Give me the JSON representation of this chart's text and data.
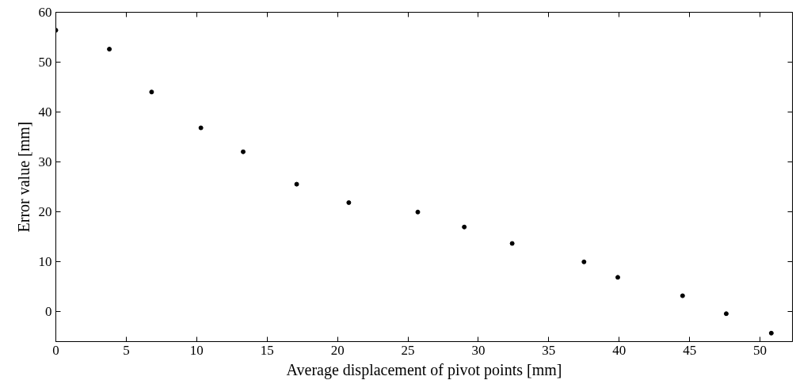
{
  "chart_data": {
    "type": "scatter",
    "xlabel": "Average displacement of pivot points [mm]",
    "ylabel": "Error value [mm]",
    "x": [
      0,
      3.8,
      6.8,
      10.3,
      13.3,
      17.1,
      20.8,
      25.7,
      29.0,
      32.4,
      37.5,
      39.9,
      44.5,
      47.6,
      50.8
    ],
    "series": [
      {
        "color": "#000000",
        "values": [
          56.4,
          52.6,
          44.0,
          36.8,
          32.0,
          25.5,
          21.8,
          19.9,
          16.9,
          13.6,
          9.9,
          6.8,
          3.1,
          -0.5,
          -4.4
        ]
      }
    ],
    "xlim": [
      0,
      52.3
    ],
    "ylim": [
      -6.1,
      60
    ],
    "xticks": [
      0,
      5,
      10,
      15,
      20,
      25,
      30,
      35,
      40,
      45,
      50
    ],
    "yticks": [
      0,
      10,
      20,
      30,
      40,
      50,
      60
    ],
    "grid": false,
    "marker": "circle"
  }
}
